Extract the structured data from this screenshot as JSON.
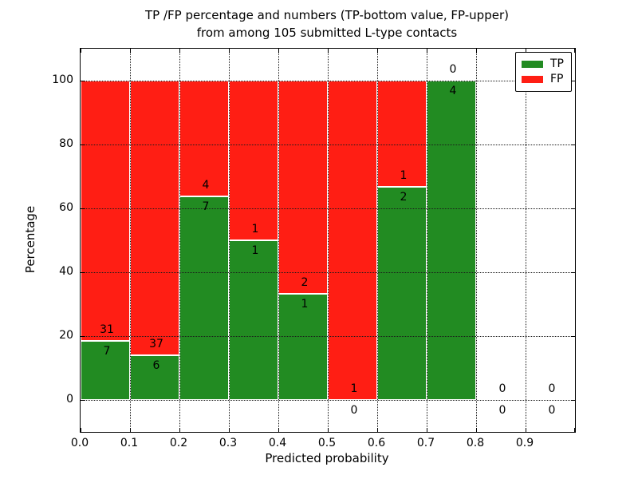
{
  "chart_data": {
    "type": "bar",
    "stacked": true,
    "title_line1": "TP /FP percentage and numbers (TP-bottom value, FP-upper)",
    "title_line2": "from among 105 submitted L-type contacts",
    "xlabel": "Predicted probability",
    "ylabel": "Percentage",
    "xlim": [
      0.0,
      1.0
    ],
    "ylim": [
      -10,
      110
    ],
    "grid": "dotted",
    "bar_bin_width": 0.1,
    "bin_starts": [
      0.0,
      0.1,
      0.2,
      0.3,
      0.4,
      0.5,
      0.6,
      0.7,
      0.8,
      0.9
    ],
    "xtick_labels": [
      "0.0",
      "0.1",
      "0.2",
      "0.3",
      "0.4",
      "0.5",
      "0.6",
      "0.7",
      "0.8",
      "0.9"
    ],
    "ytick_values": [
      0,
      20,
      40,
      60,
      80,
      100
    ],
    "ytick_labels": [
      "0",
      "20",
      "40",
      "60",
      "80",
      "100"
    ],
    "has_bar": [
      true,
      true,
      true,
      true,
      true,
      true,
      true,
      true,
      false,
      false
    ],
    "series": [
      {
        "name": "TP",
        "color": "#228b22",
        "counts": [
          7,
          6,
          7,
          1,
          1,
          0,
          2,
          4,
          0,
          0
        ],
        "percent": [
          18.42,
          13.95,
          63.64,
          50.0,
          33.33,
          0.0,
          66.67,
          100.0,
          0.0,
          0.0
        ]
      },
      {
        "name": "FP",
        "color": "#ff1e14",
        "counts": [
          31,
          37,
          4,
          1,
          2,
          1,
          1,
          0,
          0,
          0
        ],
        "percent": [
          81.58,
          86.05,
          36.36,
          50.0,
          66.67,
          100.0,
          33.33,
          0.0,
          0.0,
          0.0
        ]
      }
    ],
    "legend": {
      "position": "upper right",
      "entries": [
        {
          "label": "TP",
          "color": "#228b22"
        },
        {
          "label": "FP",
          "color": "#ff1e14"
        }
      ]
    }
  }
}
